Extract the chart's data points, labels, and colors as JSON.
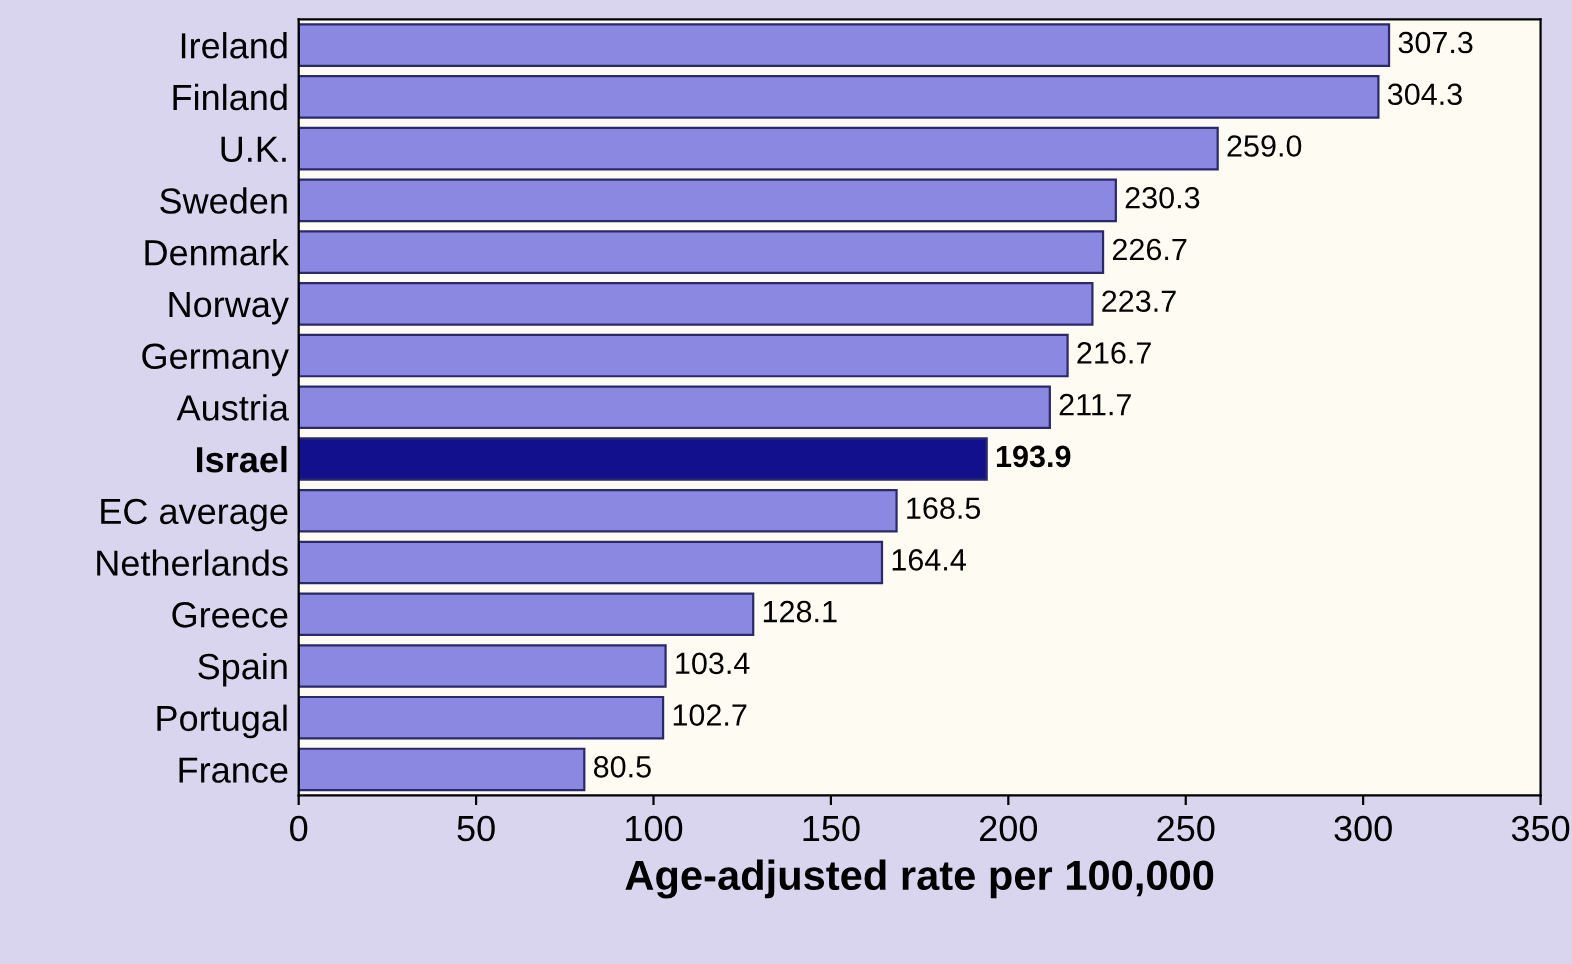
{
  "chart_data": {
    "type": "bar",
    "orientation": "horizontal",
    "xlabel": "Age-adjusted rate per 100,000",
    "categories": [
      "Ireland",
      "Finland",
      "U.K.",
      "Sweden",
      "Denmark",
      "Norway",
      "Germany",
      "Austria",
      "Israel",
      "EC average",
      "Netherlands",
      "Greece",
      "Spain",
      "Portugal",
      "France"
    ],
    "values": [
      307.3,
      304.3,
      259.0,
      230.3,
      226.7,
      223.7,
      216.7,
      211.7,
      193.9,
      168.5,
      164.4,
      128.1,
      103.4,
      102.7,
      80.5
    ],
    "value_labels": [
      "307.3",
      "304.3",
      "259.0",
      "230.3",
      "226.7",
      "223.7",
      "216.7",
      "211.7",
      "193.9",
      "168.5",
      "164.4",
      "128.1",
      "103.4",
      "102.7",
      "80.5"
    ],
    "colors": [
      "#8a88e0",
      "#8a88e0",
      "#8a88e0",
      "#8a88e0",
      "#8a88e0",
      "#8a88e0",
      "#8a88e0",
      "#8a88e0",
      "#12108c",
      "#8a88e0",
      "#8a88e0",
      "#8a88e0",
      "#8a88e0",
      "#8a88e0",
      "#8a88e0"
    ],
    "xlim": [
      0,
      350
    ],
    "xticks": [
      0,
      50,
      100,
      150,
      200,
      250,
      300,
      350
    ],
    "grid": false,
    "legend": false
  }
}
